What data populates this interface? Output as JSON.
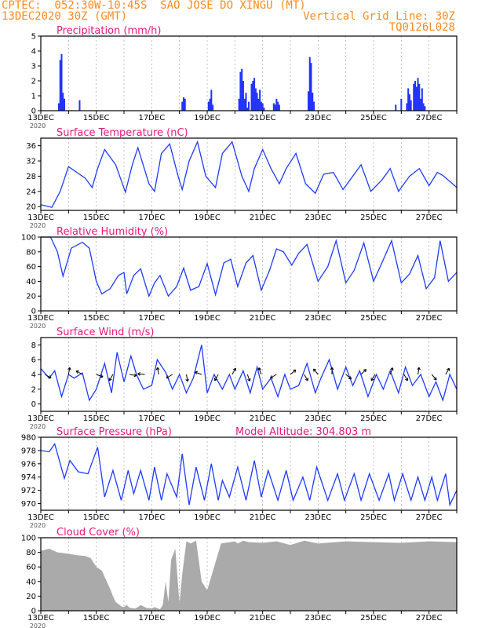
{
  "header": {
    "left_line1": "CPTEC:  052:30W-10:45S  SAO JOSE DO XINGU (MT)",
    "left_line2": "13DEC2020 30Z (GMT)",
    "right_line1": "Vertical Grid Line: 30Z",
    "right_line2": "TQ0126L028"
  },
  "colors": {
    "header": "#ff8a1a",
    "title": "#e8177f",
    "line": "#1f3bff",
    "bar": "#2233ff",
    "cloud": "#aaaaaa",
    "grid": "#9a9a9a"
  },
  "x_tick_labels": [
    "13DEC",
    "15DEC",
    "17DEC",
    "19DEC",
    "21DEC",
    "23DEC",
    "25DEC",
    "27DEC"
  ],
  "year_label": "2020",
  "chart_data": [
    {
      "type": "bar",
      "title": "Precipitation (mm/h)",
      "ylim": [
        0,
        5
      ],
      "yticks": [
        "0",
        "1",
        "2",
        "3",
        "4",
        "5"
      ],
      "x": [
        0.65,
        0.7,
        0.75,
        0.8,
        0.85,
        1.4,
        5.1,
        5.15,
        5.2,
        6.05,
        6.1,
        6.15,
        6.2,
        7.15,
        7.2,
        7.25,
        7.3,
        7.35,
        7.4,
        7.45,
        7.5,
        7.6,
        7.65,
        7.7,
        7.75,
        7.8,
        7.85,
        7.9,
        7.95,
        8.0,
        8.05,
        8.4,
        8.45,
        8.5,
        8.55,
        8.6,
        9.65,
        9.7,
        9.75,
        9.8,
        9.85,
        12.8,
        13.0,
        13.2,
        13.25,
        13.3,
        13.35,
        13.45,
        13.5,
        13.55,
        13.6,
        13.65,
        13.7,
        13.75,
        13.8,
        13.85
      ],
      "values": [
        0.5,
        3.4,
        3.8,
        1.2,
        0.8,
        0.7,
        0.6,
        0.9,
        0.8,
        0.6,
        0.8,
        1.4,
        0.4,
        0.8,
        2.6,
        2.8,
        2.0,
        0.8,
        1.2,
        0.2,
        0.6,
        1.8,
        2.0,
        2.2,
        1.5,
        1.2,
        0.8,
        1.4,
        0.6,
        0.5,
        0.2,
        0.5,
        0.4,
        0.8,
        0.6,
        0.4,
        1.3,
        3.6,
        3.2,
        1.2,
        0.6,
        0.4,
        0.8,
        0.5,
        1.5,
        1.1,
        0.7,
        1.8,
        2.0,
        1.6,
        2.2,
        1.8,
        0.8,
        1.5,
        0.5,
        0.3
      ],
      "xlabel": "",
      "ylabel": ""
    },
    {
      "type": "line",
      "title": "Surface Temperature (nC)",
      "ylim": [
        19,
        38
      ],
      "yticks": [
        "20",
        "24",
        "28",
        "32",
        "36"
      ],
      "x": [
        0,
        0.4,
        0.7,
        1.0,
        1.3,
        1.6,
        1.85,
        2.05,
        2.3,
        2.7,
        3.05,
        3.3,
        3.5,
        3.9,
        4.1,
        4.35,
        4.65,
        4.95,
        5.1,
        5.35,
        5.65,
        5.95,
        6.3,
        6.55,
        6.9,
        7.25,
        7.5,
        7.7,
        8.0,
        8.3,
        8.6,
        8.85,
        9.2,
        9.55,
        9.9,
        10.2,
        10.55,
        10.9,
        11.3,
        11.55,
        11.9,
        12.3,
        12.6,
        12.9,
        13.3,
        13.65,
        14.0,
        14.3,
        14.5,
        14.85,
        15.0
      ],
      "values": [
        20.5,
        19.8,
        24,
        30.5,
        29,
        27.5,
        25,
        30,
        35,
        31,
        23.8,
        31,
        35.5,
        26,
        24,
        34,
        36.5,
        28,
        24.5,
        32,
        37,
        28,
        25,
        34,
        37,
        28,
        24,
        30,
        35,
        30,
        26,
        30,
        34,
        26,
        23.5,
        28.5,
        29,
        24.5,
        28.5,
        31,
        24,
        27,
        30,
        24,
        28,
        30,
        25.5,
        29,
        28.2,
        26,
        25
      ],
      "xlabel": "",
      "ylabel": ""
    },
    {
      "type": "line",
      "title": "Relative Humidity (%)",
      "ylim": [
        0,
        100
      ],
      "yticks": [
        "0",
        "20",
        "40",
        "60",
        "80",
        "100"
      ],
      "x": [
        0,
        0.35,
        0.6,
        0.8,
        1.1,
        1.5,
        1.75,
        2.0,
        2.2,
        2.5,
        2.8,
        3.0,
        3.1,
        3.35,
        3.6,
        3.9,
        4.1,
        4.3,
        4.6,
        4.9,
        5.15,
        5.4,
        5.7,
        6.0,
        6.3,
        6.6,
        6.85,
        7.1,
        7.4,
        7.65,
        7.95,
        8.25,
        8.5,
        8.75,
        9.05,
        9.3,
        9.6,
        10.0,
        10.35,
        10.65,
        11.0,
        11.3,
        11.65,
        12.0,
        12.3,
        12.65,
        13.0,
        13.3,
        13.6,
        13.9,
        14.2,
        14.4,
        14.7,
        15.0
      ],
      "values": [
        100,
        100,
        80,
        47,
        85,
        93,
        85,
        40,
        23,
        30,
        48,
        52,
        23,
        48,
        57,
        20,
        38,
        48,
        20,
        33,
        58,
        28,
        33,
        64,
        22,
        65,
        70,
        33,
        65,
        75,
        28,
        55,
        84,
        80,
        62,
        78,
        90,
        40,
        60,
        95,
        38,
        55,
        92,
        40,
        65,
        95,
        38,
        50,
        75,
        30,
        45,
        95,
        40,
        52
      ],
      "xlabel": "",
      "ylabel": ""
    },
    {
      "type": "line",
      "title": "Surface Wind (m/s)",
      "ylim": [
        -1,
        9
      ],
      "yticks": [
        "0",
        "2",
        "4",
        "6",
        "8"
      ],
      "x": [
        0,
        0.3,
        0.5,
        0.75,
        1.0,
        1.2,
        1.5,
        1.75,
        2.0,
        2.3,
        2.55,
        2.75,
        3.0,
        3.25,
        3.45,
        3.7,
        4.0,
        4.2,
        4.5,
        4.75,
        5.0,
        5.25,
        5.5,
        5.8,
        6.0,
        6.25,
        6.55,
        6.8,
        7.0,
        7.3,
        7.55,
        7.8,
        8.0,
        8.3,
        8.55,
        8.8,
        9.0,
        9.3,
        9.6,
        9.9,
        10.1,
        10.4,
        10.7,
        11.0,
        11.25,
        11.5,
        11.8,
        12.1,
        12.35,
        12.6,
        12.9,
        13.15,
        13.4,
        13.7,
        14.0,
        14.25,
        14.5,
        14.75,
        15.0
      ],
      "values": [
        4.8,
        3.5,
        4.5,
        1.0,
        4.0,
        3.5,
        4.2,
        0.5,
        2.0,
        5.5,
        1.5,
        7.0,
        3.0,
        6.5,
        4.0,
        2.0,
        2.5,
        6.0,
        4.3,
        2.0,
        4.0,
        1.5,
        3.5,
        8.0,
        1.5,
        4.0,
        2.0,
        4.0,
        2.0,
        4.5,
        1.5,
        5.0,
        2.0,
        3.5,
        1.0,
        4.0,
        2.0,
        2.5,
        5.5,
        1.5,
        3.5,
        6.0,
        2.0,
        5.0,
        2.5,
        4.5,
        1.0,
        4.0,
        2.0,
        4.5,
        1.5,
        5.0,
        2.5,
        4.0,
        1.0,
        3.0,
        0.5,
        4.0,
        2.0
      ],
      "xlabel": "",
      "ylabel": ""
    },
    {
      "type": "line",
      "title": "Surface Pressure (hPa)",
      "subtitle": "Model Altitude: 304.803 m",
      "ylim": [
        969,
        980
      ],
      "yticks": [
        "970",
        "972",
        "974",
        "976",
        "978",
        "980"
      ],
      "x": [
        0,
        0.3,
        0.5,
        0.85,
        1.05,
        1.35,
        1.7,
        2.05,
        2.3,
        2.6,
        2.9,
        3.15,
        3.35,
        3.6,
        3.9,
        4.1,
        4.35,
        4.55,
        4.9,
        5.1,
        5.35,
        5.6,
        5.9,
        6.15,
        6.4,
        6.55,
        6.8,
        7.1,
        7.4,
        7.7,
        7.95,
        8.2,
        8.55,
        8.85,
        9.1,
        9.45,
        9.7,
        9.95,
        10.35,
        10.7,
        10.95,
        11.3,
        11.55,
        11.85,
        12.2,
        12.55,
        12.75,
        13.05,
        13.35,
        13.6,
        13.85,
        14.1,
        14.3,
        14.6,
        14.75,
        15.0
      ],
      "values": [
        978,
        977.8,
        979,
        973.8,
        976.5,
        974.8,
        974.5,
        978.5,
        971,
        975,
        970.5,
        975,
        971.5,
        975,
        970.5,
        975.5,
        970.5,
        974.5,
        971,
        977.5,
        969.8,
        975.5,
        970.5,
        976,
        970.5,
        973.5,
        971,
        975.5,
        970.5,
        976.5,
        971,
        975,
        970.5,
        975,
        970.5,
        974,
        970.5,
        975.5,
        970.5,
        974.5,
        970.5,
        974.5,
        970.5,
        974.5,
        970.5,
        974.5,
        970.5,
        974.5,
        970.5,
        974,
        970.5,
        974,
        970.5,
        974.5,
        969.8,
        972
      ],
      "xlabel": "",
      "ylabel": ""
    },
    {
      "type": "area",
      "title": "Cloud Cover (%)",
      "ylim": [
        0,
        100
      ],
      "yticks": [
        "0",
        "20",
        "40",
        "60",
        "80",
        "100"
      ],
      "x": [
        0,
        0.3,
        0.6,
        1.0,
        1.3,
        1.6,
        1.8,
        2.0,
        2.2,
        2.5,
        2.6,
        2.7,
        2.9,
        3.0,
        3.1,
        3.2,
        3.4,
        3.5,
        3.6,
        3.8,
        4.0,
        4.1,
        4.3,
        4.4,
        4.5,
        4.6,
        4.7,
        4.85,
        5.0,
        5.1,
        5.25,
        5.4,
        5.6,
        5.8,
        6.0,
        6.5,
        7.0,
        7.1,
        7.3,
        7.5,
        8.0,
        8.5,
        9.0,
        9.5,
        10.0,
        11.0,
        12.0,
        13.0,
        14.0,
        15.0
      ],
      "values": [
        82,
        85,
        80,
        78,
        76,
        75,
        72,
        60,
        55,
        30,
        20,
        12,
        6,
        5,
        8,
        4,
        3,
        5,
        8,
        4,
        3,
        5,
        2,
        8,
        40,
        12,
        70,
        85,
        10,
        50,
        95,
        92,
        96,
        40,
        28,
        92,
        95,
        92,
        96,
        94,
        93,
        95,
        90,
        96,
        92,
        95,
        94,
        93,
        95,
        94
      ],
      "xlabel": "",
      "ylabel": ""
    }
  ],
  "wind_vectors": {
    "x": [
      0.15,
      1.0,
      1.5,
      2.0,
      2.6,
      3.2,
      3.75,
      4.25,
      4.75,
      5.25,
      5.8,
      6.4,
      6.9,
      7.45,
      7.95,
      8.5,
      9.0,
      9.5,
      10.0,
      10.5,
      11.0,
      11.55,
      12.05,
      12.6,
      13.1,
      13.6,
      14.1,
      14.6
    ],
    "angles_deg": [
      -30,
      80,
      150,
      -20,
      -120,
      -10,
      175,
      100,
      -150,
      -80,
      160,
      -120,
      60,
      -70,
      110,
      -150,
      40,
      -60,
      130,
      90,
      -40,
      45,
      -120,
      70,
      -60,
      80,
      -50,
      60
    ]
  }
}
